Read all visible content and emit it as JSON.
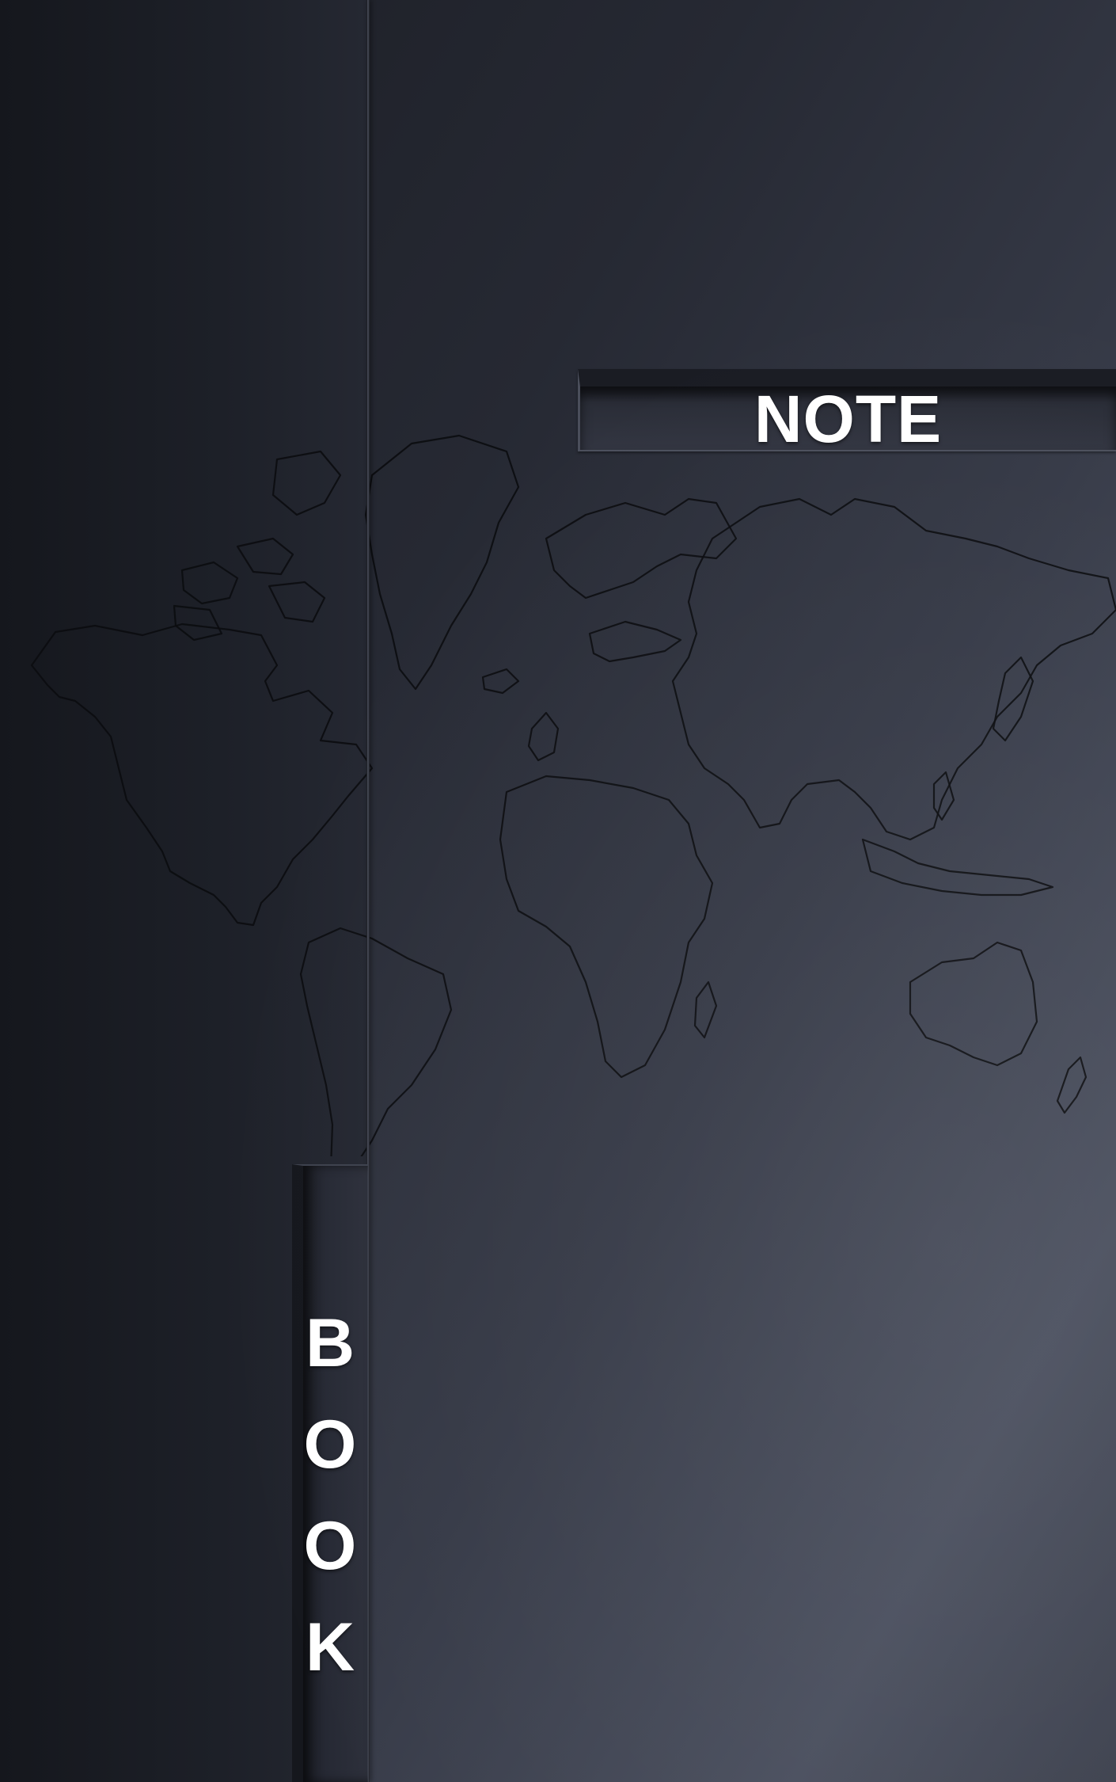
{
  "cover": {
    "title_label": "NOTE",
    "spine_label": [
      "B",
      "O",
      "O",
      "K"
    ],
    "background_color": "#2b2e38",
    "text_color": "#ffffff",
    "map_outline_color": "#0b0c10",
    "background_art": "world-map-outline"
  }
}
